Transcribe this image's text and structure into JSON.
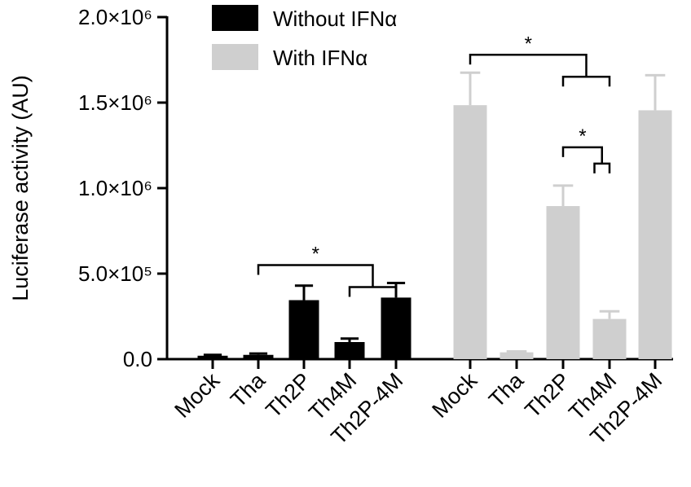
{
  "chart_data": {
    "type": "bar",
    "ylabel": "Luciferase activity (AU)",
    "ylim": [
      0,
      2000000
    ],
    "yticks": [
      {
        "value": 0,
        "label": "0.0"
      },
      {
        "value": 500000,
        "label": "5.0×10⁵"
      },
      {
        "value": 1000000,
        "label": "1.0×10⁶"
      },
      {
        "value": 1500000,
        "label": "1.5×10⁶"
      },
      {
        "value": 2000000,
        "label": "2.0×10⁶"
      }
    ],
    "categories": [
      "Mock",
      "Tha",
      "Th2P",
      "Th4M",
      "Th2P-4M"
    ],
    "series": [
      {
        "name": "Without IFNα",
        "color": "#000000",
        "values": [
          20000,
          25000,
          345000,
          100000,
          360000
        ],
        "errors": [
          5000,
          8000,
          85000,
          20000,
          85000
        ]
      },
      {
        "name": "With IFNα",
        "color": "#cfcfcf",
        "values": [
          1485000,
          40000,
          895000,
          235000,
          1455000
        ],
        "errors": [
          190000,
          5000,
          120000,
          45000,
          205000
        ]
      }
    ],
    "significance": [
      {
        "series": 0,
        "from": 1,
        "to": [
          3,
          4
        ],
        "label": "*"
      },
      {
        "series": 1,
        "from": 0,
        "to": [
          2,
          3
        ],
        "label": "*"
      },
      {
        "series": 1,
        "from": 2,
        "to": [
          3,
          3
        ],
        "label": "*"
      }
    ],
    "legend_position": "top-center"
  }
}
